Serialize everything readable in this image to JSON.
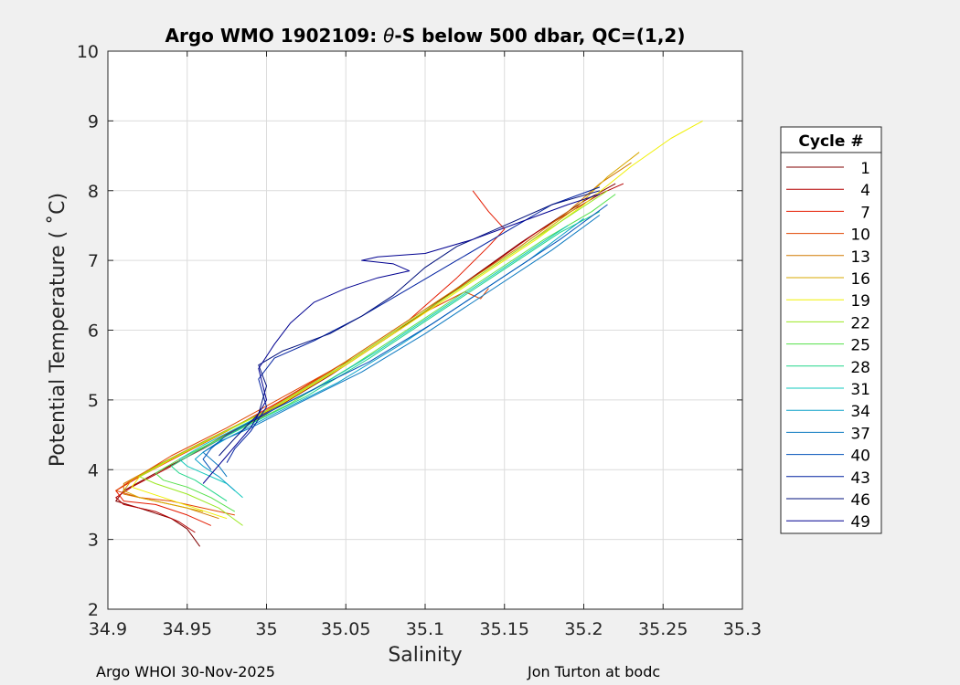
{
  "chart_data": {
    "type": "line",
    "title": "Argo WMO 1902109: θ-S below 500 dbar,  QC=(1,2)",
    "title_prefix": "Argo WMO 1902109: ",
    "title_theta": "θ",
    "title_suffix": "-S below 500 dbar,  QC=(1,2)",
    "xlabel": "Salinity",
    "ylabel": "Potential Temperature ( ˚C)",
    "xlim": [
      34.9,
      35.3
    ],
    "ylim": [
      2,
      10
    ],
    "x_ticks": [
      "34.9",
      "34.95",
      "35",
      "35.05",
      "35.1",
      "35.15",
      "35.2",
      "35.25",
      "35.3"
    ],
    "y_ticks": [
      "2",
      "3",
      "4",
      "5",
      "6",
      "7",
      "8",
      "9",
      "10"
    ],
    "grid": true,
    "legend_placement": "right",
    "legend_title": "Cycle #",
    "legend": [
      {
        "label": "1",
        "color": "#800000"
      },
      {
        "label": "4",
        "color": "#b40000"
      },
      {
        "label": "7",
        "color": "#e41b00"
      },
      {
        "label": "10",
        "color": "#e14400"
      },
      {
        "label": "13",
        "color": "#d07a00"
      },
      {
        "label": "16",
        "color": "#d8a800"
      },
      {
        "label": "19",
        "color": "#f0f000"
      },
      {
        "label": "22",
        "color": "#9be822"
      },
      {
        "label": "25",
        "color": "#55e04a"
      },
      {
        "label": "28",
        "color": "#22d68a"
      },
      {
        "label": "31",
        "color": "#10c8bc"
      },
      {
        "label": "34",
        "color": "#0aa0c8"
      },
      {
        "label": "37",
        "color": "#0a78c0"
      },
      {
        "label": "40",
        "color": "#0050b8"
      },
      {
        "label": "43",
        "color": "#0020a0"
      },
      {
        "label": "46",
        "color": "#00107c"
      },
      {
        "label": "49",
        "color": "#000090"
      }
    ],
    "series": [
      {
        "color": "#800000",
        "x": [
          34.958,
          34.95,
          34.94,
          34.92,
          34.905,
          34.91,
          34.93,
          34.96,
          35.0,
          35.04,
          35.08,
          35.12,
          35.16,
          35.2,
          35.22
        ],
        "y": [
          2.9,
          3.15,
          3.3,
          3.45,
          3.55,
          3.7,
          3.95,
          4.3,
          4.8,
          5.35,
          5.95,
          6.6,
          7.25,
          7.85,
          8.1
        ]
      },
      {
        "color": "#b40000",
        "x": [
          34.955,
          34.945,
          34.93,
          34.91,
          34.905,
          34.915,
          34.94,
          34.97,
          35.01,
          35.05,
          35.09,
          35.13,
          35.17,
          35.21,
          35.225
        ],
        "y": [
          3.1,
          3.25,
          3.4,
          3.5,
          3.6,
          3.75,
          4.05,
          4.45,
          4.95,
          5.5,
          6.1,
          6.75,
          7.4,
          7.95,
          8.1
        ]
      },
      {
        "color": "#e41b00",
        "x": [
          34.965,
          34.95,
          34.93,
          34.91,
          34.905,
          34.92,
          34.945,
          34.975,
          35.01,
          35.05,
          35.09,
          35.12,
          35.14,
          35.15,
          35.14,
          35.13
        ],
        "y": [
          3.2,
          3.35,
          3.5,
          3.55,
          3.7,
          3.9,
          4.2,
          4.55,
          5.0,
          5.55,
          6.15,
          6.75,
          7.2,
          7.45,
          7.7,
          8.0
        ]
      },
      {
        "color": "#e14400",
        "x": [
          34.98,
          34.96,
          34.94,
          34.92,
          34.905,
          34.915,
          34.94,
          34.975,
          35.015,
          35.055,
          35.095,
          35.125,
          35.135,
          35.14
        ],
        "y": [
          3.35,
          3.45,
          3.55,
          3.6,
          3.7,
          3.85,
          4.2,
          4.6,
          5.1,
          5.6,
          6.2,
          6.55,
          6.45,
          6.6
        ]
      },
      {
        "color": "#d07a00",
        "x": [
          34.97,
          34.95,
          34.93,
          34.91,
          34.91,
          34.93,
          34.96,
          35.0,
          35.04,
          35.08,
          35.12,
          35.16,
          35.19,
          35.21,
          35.23
        ],
        "y": [
          3.3,
          3.45,
          3.55,
          3.65,
          3.8,
          4.05,
          4.4,
          4.85,
          5.4,
          6.0,
          6.6,
          7.2,
          7.7,
          8.1,
          8.4
        ]
      },
      {
        "color": "#d8a800",
        "x": [
          34.96,
          34.94,
          34.92,
          34.91,
          34.915,
          34.935,
          34.965,
          35.005,
          35.045,
          35.085,
          35.125,
          35.165,
          35.195,
          35.215,
          35.235
        ],
        "y": [
          3.4,
          3.5,
          3.6,
          3.7,
          3.85,
          4.1,
          4.45,
          4.9,
          5.45,
          6.05,
          6.65,
          7.25,
          7.75,
          8.2,
          8.55
        ]
      },
      {
        "color": "#f0f000",
        "x": [
          34.975,
          34.955,
          34.935,
          34.915,
          34.92,
          34.94,
          34.97,
          35.01,
          35.05,
          35.09,
          35.13,
          35.17,
          35.2,
          35.23,
          35.255,
          35.275
        ],
        "y": [
          3.3,
          3.45,
          3.6,
          3.75,
          3.9,
          4.15,
          4.5,
          4.95,
          5.5,
          6.1,
          6.7,
          7.3,
          7.8,
          8.35,
          8.75,
          9.0
        ]
      },
      {
        "color": "#9be822",
        "x": [
          34.985,
          34.97,
          34.95,
          34.93,
          34.92,
          34.935,
          34.965,
          35.005,
          35.045,
          35.085,
          35.125,
          35.165,
          35.195,
          35.215
        ],
        "y": [
          3.2,
          3.45,
          3.65,
          3.8,
          3.9,
          4.1,
          4.45,
          4.9,
          5.45,
          6.05,
          6.65,
          7.25,
          7.7,
          8.0
        ]
      },
      {
        "color": "#55e04a",
        "x": [
          34.98,
          34.965,
          34.95,
          34.935,
          34.93,
          34.945,
          34.975,
          35.015,
          35.055,
          35.095,
          35.135,
          35.175,
          35.205,
          35.22
        ],
        "y": [
          3.4,
          3.6,
          3.75,
          3.85,
          3.95,
          4.15,
          4.5,
          4.95,
          5.5,
          6.1,
          6.7,
          7.3,
          7.7,
          7.95
        ]
      },
      {
        "color": "#22d68a",
        "x": [
          34.975,
          34.965,
          34.955,
          34.945,
          34.94,
          34.955,
          34.985,
          35.025,
          35.065,
          35.105,
          35.145,
          35.185,
          35.21
        ],
        "y": [
          3.55,
          3.7,
          3.85,
          3.95,
          4.05,
          4.25,
          4.6,
          5.05,
          5.6,
          6.2,
          6.8,
          7.4,
          7.7
        ]
      },
      {
        "color": "#10c8bc",
        "x": [
          34.985,
          34.975,
          34.96,
          34.95,
          34.945,
          34.96,
          34.99,
          35.03,
          35.07,
          35.11,
          35.15,
          35.19
        ],
        "y": [
          3.6,
          3.8,
          3.95,
          4.05,
          4.15,
          4.35,
          4.7,
          5.15,
          5.7,
          6.3,
          6.9,
          7.5
        ]
      },
      {
        "color": "#0aa0c8",
        "x": [
          34.98,
          34.97,
          34.96,
          34.955,
          34.96,
          34.975,
          35.005,
          35.045,
          35.085,
          35.125,
          35.165,
          35.2
        ],
        "y": [
          3.7,
          3.9,
          4.05,
          4.15,
          4.25,
          4.45,
          4.8,
          5.25,
          5.8,
          6.4,
          7.0,
          7.6
        ]
      },
      {
        "color": "#0a78c0",
        "x": [
          34.975,
          34.97,
          34.965,
          34.96,
          34.97,
          34.99,
          35.02,
          35.06,
          35.1,
          35.14,
          35.18,
          35.21
        ],
        "y": [
          3.9,
          4.05,
          4.15,
          4.25,
          4.4,
          4.6,
          4.95,
          5.4,
          5.95,
          6.55,
          7.15,
          7.65
        ]
      },
      {
        "color": "#0050b8",
        "x": [
          34.965,
          34.96,
          34.965,
          34.975,
          34.995,
          35.025,
          35.065,
          35.105,
          35.145,
          35.185,
          35.215
        ],
        "y": [
          4.0,
          4.15,
          4.3,
          4.5,
          4.75,
          5.1,
          5.55,
          6.1,
          6.7,
          7.3,
          7.8
        ]
      },
      {
        "color": "#0020a0",
        "x": [
          34.975,
          34.98,
          34.99,
          35.0,
          34.995,
          35.005,
          35.03,
          35.06,
          35.09,
          35.12,
          35.15,
          35.18,
          35.21
        ],
        "y": [
          4.1,
          4.3,
          4.55,
          4.9,
          5.3,
          5.6,
          5.85,
          6.2,
          6.6,
          7.0,
          7.4,
          7.8,
          8.05
        ]
      },
      {
        "color": "#00107c",
        "x": [
          34.97,
          34.98,
          34.995,
          35.0,
          34.995,
          35.01,
          35.04,
          35.06,
          35.08,
          35.1,
          35.12,
          35.15,
          35.18,
          35.21
        ],
        "y": [
          4.2,
          4.45,
          4.8,
          5.2,
          5.5,
          5.7,
          5.95,
          6.2,
          6.5,
          6.9,
          7.2,
          7.5,
          7.8,
          8.0
        ]
      },
      {
        "color": "#000090",
        "x": [
          34.96,
          34.975,
          34.99,
          35.0,
          34.995,
          35.005,
          35.015,
          35.03,
          35.05,
          35.07,
          35.09,
          35.08,
          35.06,
          35.07,
          35.1,
          35.13,
          35.16,
          35.19,
          35.21
        ],
        "y": [
          3.8,
          4.2,
          4.6,
          5.0,
          5.45,
          5.8,
          6.1,
          6.4,
          6.6,
          6.75,
          6.85,
          6.95,
          7.0,
          7.05,
          7.1,
          7.3,
          7.55,
          7.8,
          7.95
        ]
      }
    ]
  },
  "footer": {
    "left": "Argo WHOI 30-Nov-2025",
    "right": "Jon Turton at bodc"
  }
}
